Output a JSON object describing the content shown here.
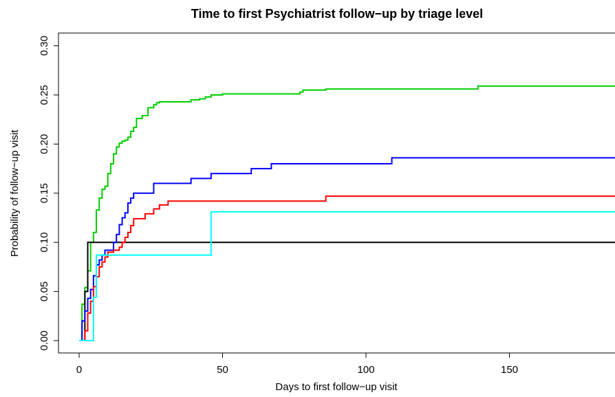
{
  "chart_data": {
    "type": "line",
    "step": "post",
    "title": "Time to first Psychiatrist follow−up by triage level",
    "x_label": "Days to first follow−up visit",
    "y_label": "Probability of follow−up visit",
    "xlim": [
      -7.2,
      186.8
    ],
    "ylim": [
      -0.0126,
      0.313
    ],
    "xticks": [
      0,
      50,
      100,
      150
    ],
    "yticks": [
      {
        "value": 0,
        "label": "0.00"
      },
      {
        "value": 0.05,
        "label": "0.05"
      },
      {
        "value": 0.1,
        "label": "0.10"
      },
      {
        "value": 0.15,
        "label": "0.15"
      },
      {
        "value": 0.2,
        "label": "0.20"
      },
      {
        "value": 0.25,
        "label": "0.25"
      },
      {
        "value": 0.3,
        "label": "0.30"
      }
    ],
    "series": [
      {
        "color": "#00cd00",
        "x": [
          0,
          1,
          2,
          3,
          4,
          5,
          6,
          7,
          8,
          9,
          10,
          11,
          12,
          13,
          14,
          15,
          16,
          17,
          18,
          19,
          20,
          22,
          24,
          26,
          27,
          28,
          39,
          42,
          44,
          46,
          50,
          77,
          78,
          86,
          139,
          187
        ],
        "values": [
          0,
          0.037,
          0.054,
          0.071,
          0.1,
          0.11,
          0.133,
          0.145,
          0.154,
          0.157,
          0.17,
          0.18,
          0.19,
          0.197,
          0.201,
          0.203,
          0.204,
          0.207,
          0.213,
          0.217,
          0.226,
          0.229,
          0.237,
          0.24,
          0.242,
          0.243,
          0.245,
          0.246,
          0.248,
          0.25,
          0.251,
          0.253,
          0.255,
          0.256,
          0.259,
          0.259
        ]
      },
      {
        "color": "#000000",
        "x": [
          0,
          2,
          3,
          187
        ],
        "values": [
          0,
          0.05,
          0.1,
          0.1
        ]
      },
      {
        "color": "#0000ff",
        "x": [
          0,
          1,
          2,
          3,
          4,
          5,
          6,
          7,
          8,
          9,
          12,
          13,
          14,
          15,
          16,
          17,
          18,
          19,
          26,
          39,
          46,
          60,
          67,
          109,
          187
        ],
        "values": [
          0,
          0.02,
          0.03,
          0.043,
          0.052,
          0.066,
          0.077,
          0.082,
          0.087,
          0.092,
          0.1,
          0.108,
          0.118,
          0.125,
          0.13,
          0.14,
          0.145,
          0.15,
          0.16,
          0.165,
          0.17,
          0.175,
          0.18,
          0.186,
          0.186
        ]
      },
      {
        "color": "#ff0000",
        "x": [
          0,
          2,
          3,
          4,
          5,
          6,
          7,
          8,
          9,
          10,
          12,
          14,
          15,
          16,
          17,
          18,
          19,
          23,
          26,
          28,
          31,
          86,
          187
        ],
        "values": [
          0,
          0.01,
          0.028,
          0.04,
          0.055,
          0.065,
          0.075,
          0.08,
          0.085,
          0.09,
          0.092,
          0.095,
          0.1,
          0.105,
          0.11,
          0.117,
          0.124,
          0.129,
          0.134,
          0.138,
          0.142,
          0.147,
          0.147
        ]
      },
      {
        "color": "#00ffff",
        "x": [
          0,
          5,
          6,
          46,
          187
        ],
        "values": [
          0,
          0.044,
          0.087,
          0.131,
          0.131
        ]
      }
    ]
  }
}
